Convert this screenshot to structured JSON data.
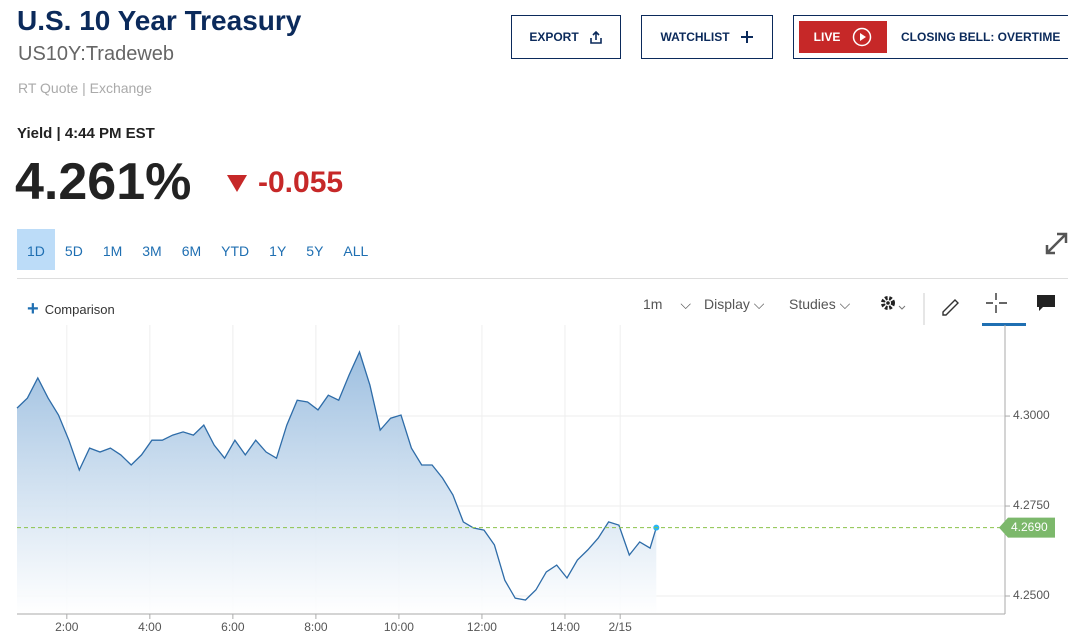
{
  "header": {
    "title": "U.S. 10 Year Treasury",
    "symbol": "US10Y:Tradeweb",
    "source": "RT Quote | Exchange"
  },
  "buttons": {
    "export": "EXPORT",
    "watchlist": "WATCHLIST",
    "live": "LIVE",
    "show": "CLOSING BELL: OVERTIME"
  },
  "quote": {
    "label": "Yield | 4:44 PM EST",
    "price": "4.261%",
    "change": "-0.055"
  },
  "ranges": [
    "1D",
    "5D",
    "1M",
    "3M",
    "6M",
    "YTD",
    "1Y",
    "5Y",
    "ALL"
  ],
  "toolbar": {
    "comparison": "Comparison",
    "interval": "1m",
    "display": "Display",
    "studies": "Studies"
  },
  "chart_data": {
    "type": "area",
    "color": "#2e6ca8",
    "x": [
      0.8,
      1.05,
      1.3,
      1.55,
      1.8,
      2.05,
      2.3,
      2.55,
      2.8,
      3.05,
      3.3,
      3.55,
      3.8,
      4.05,
      4.3,
      4.55,
      4.8,
      5.05,
      5.3,
      5.55,
      5.8,
      6.05,
      6.3,
      6.55,
      6.8,
      7.05,
      7.3,
      7.55,
      7.8,
      8.05,
      8.3,
      8.55,
      8.8,
      9.05,
      9.3,
      9.55,
      9.8,
      10.05,
      10.3,
      10.55,
      10.8,
      11.05,
      11.3,
      11.55,
      11.8,
      12.05,
      12.3,
      12.55,
      12.8,
      13.05,
      13.3,
      13.55,
      13.8,
      14.05,
      14.3,
      14.55,
      14.8,
      15.05,
      15.3,
      15.55,
      15.8,
      16.05,
      16.2
    ],
    "values": [
      4.3022,
      4.305,
      4.3106,
      4.305,
      4.3003,
      4.2933,
      4.285,
      4.2911,
      4.29,
      4.2911,
      4.2892,
      4.2864,
      4.2892,
      4.2933,
      4.2933,
      4.2947,
      4.2956,
      4.2947,
      4.2975,
      4.2919,
      4.2883,
      4.2933,
      4.2892,
      4.2933,
      4.29,
      4.2883,
      4.2975,
      4.3044,
      4.3039,
      4.3017,
      4.3058,
      4.3044,
      4.3114,
      4.3178,
      4.3086,
      4.2961,
      4.2994,
      4.3003,
      4.2911,
      4.2864,
      4.2864,
      4.2828,
      4.2781,
      4.2706,
      4.2689,
      4.2683,
      4.2642,
      4.2544,
      4.2494,
      4.2489,
      4.2517,
      4.2567,
      4.2586,
      4.255,
      4.26,
      4.2628,
      4.2661,
      4.2706,
      4.2697,
      4.2614,
      4.265,
      4.2633,
      4.269
    ],
    "xlim": [
      0.8,
      24.6
    ],
    "xticks": [
      {
        "value": 2,
        "label": "2:00"
      },
      {
        "value": 4,
        "label": "4:00"
      },
      {
        "value": 6,
        "label": "6:00"
      },
      {
        "value": 8,
        "label": "8:00"
      },
      {
        "value": 10,
        "label": "10:00"
      },
      {
        "value": 12,
        "label": "12:00"
      },
      {
        "value": 14,
        "label": "14:00"
      },
      {
        "value": 15.33,
        "label": "2/15"
      }
    ],
    "ylim": [
      4.245,
      4.3253
    ],
    "yticks": [
      {
        "value": 4.3,
        "label": "4.3000"
      },
      {
        "value": 4.275,
        "label": "4.2750"
      },
      {
        "value": 4.25,
        "label": "4.2500"
      }
    ],
    "last": {
      "value": 4.269,
      "label": "4.2690"
    },
    "grid": true
  }
}
